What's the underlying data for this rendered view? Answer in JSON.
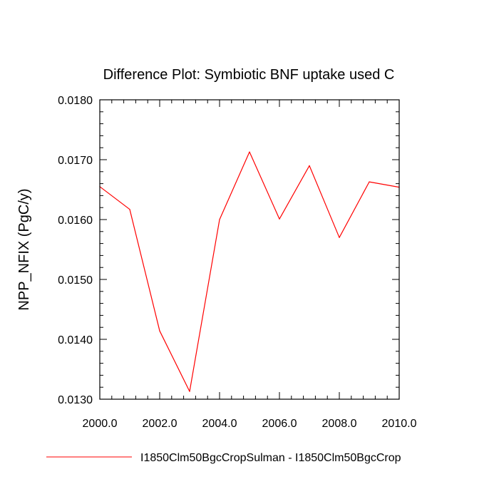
{
  "chart_data": {
    "type": "line",
    "title": "Difference Plot: Symbiotic BNF uptake used C",
    "xlabel": "",
    "ylabel": "NPP_NFIX  (PgC/y)",
    "xlim": [
      2000.0,
      2010.0
    ],
    "ylim": [
      0.013,
      0.018
    ],
    "xticks": [
      2000,
      2002,
      2004,
      2006,
      2008,
      2010
    ],
    "xtick_labels": [
      "2000.0",
      "2002.0",
      "2004.0",
      "2006.0",
      "2008.0",
      "2010.0"
    ],
    "yticks": [
      0.013,
      0.014,
      0.015,
      0.016,
      0.017,
      0.018
    ],
    "ytick_labels": [
      "0.0130",
      "0.0140",
      "0.0150",
      "0.0160",
      "0.0170",
      "0.0180"
    ],
    "x_minor_step": 0.4,
    "y_minor_step": 0.0002,
    "grid": false,
    "legend_position": "bottom",
    "series": [
      {
        "name": "I1850Clm50BgcCropSulman - I1850Clm50BgcCrop",
        "color": "#ff0000",
        "x": [
          2000,
          2001,
          2002,
          2003,
          2004,
          2005,
          2006,
          2007,
          2008,
          2009,
          2010
        ],
        "values": [
          0.01655,
          0.01617,
          0.01414,
          0.01313,
          0.016,
          0.01713,
          0.01601,
          0.0169,
          0.0157,
          0.01663,
          0.01654
        ]
      }
    ]
  }
}
